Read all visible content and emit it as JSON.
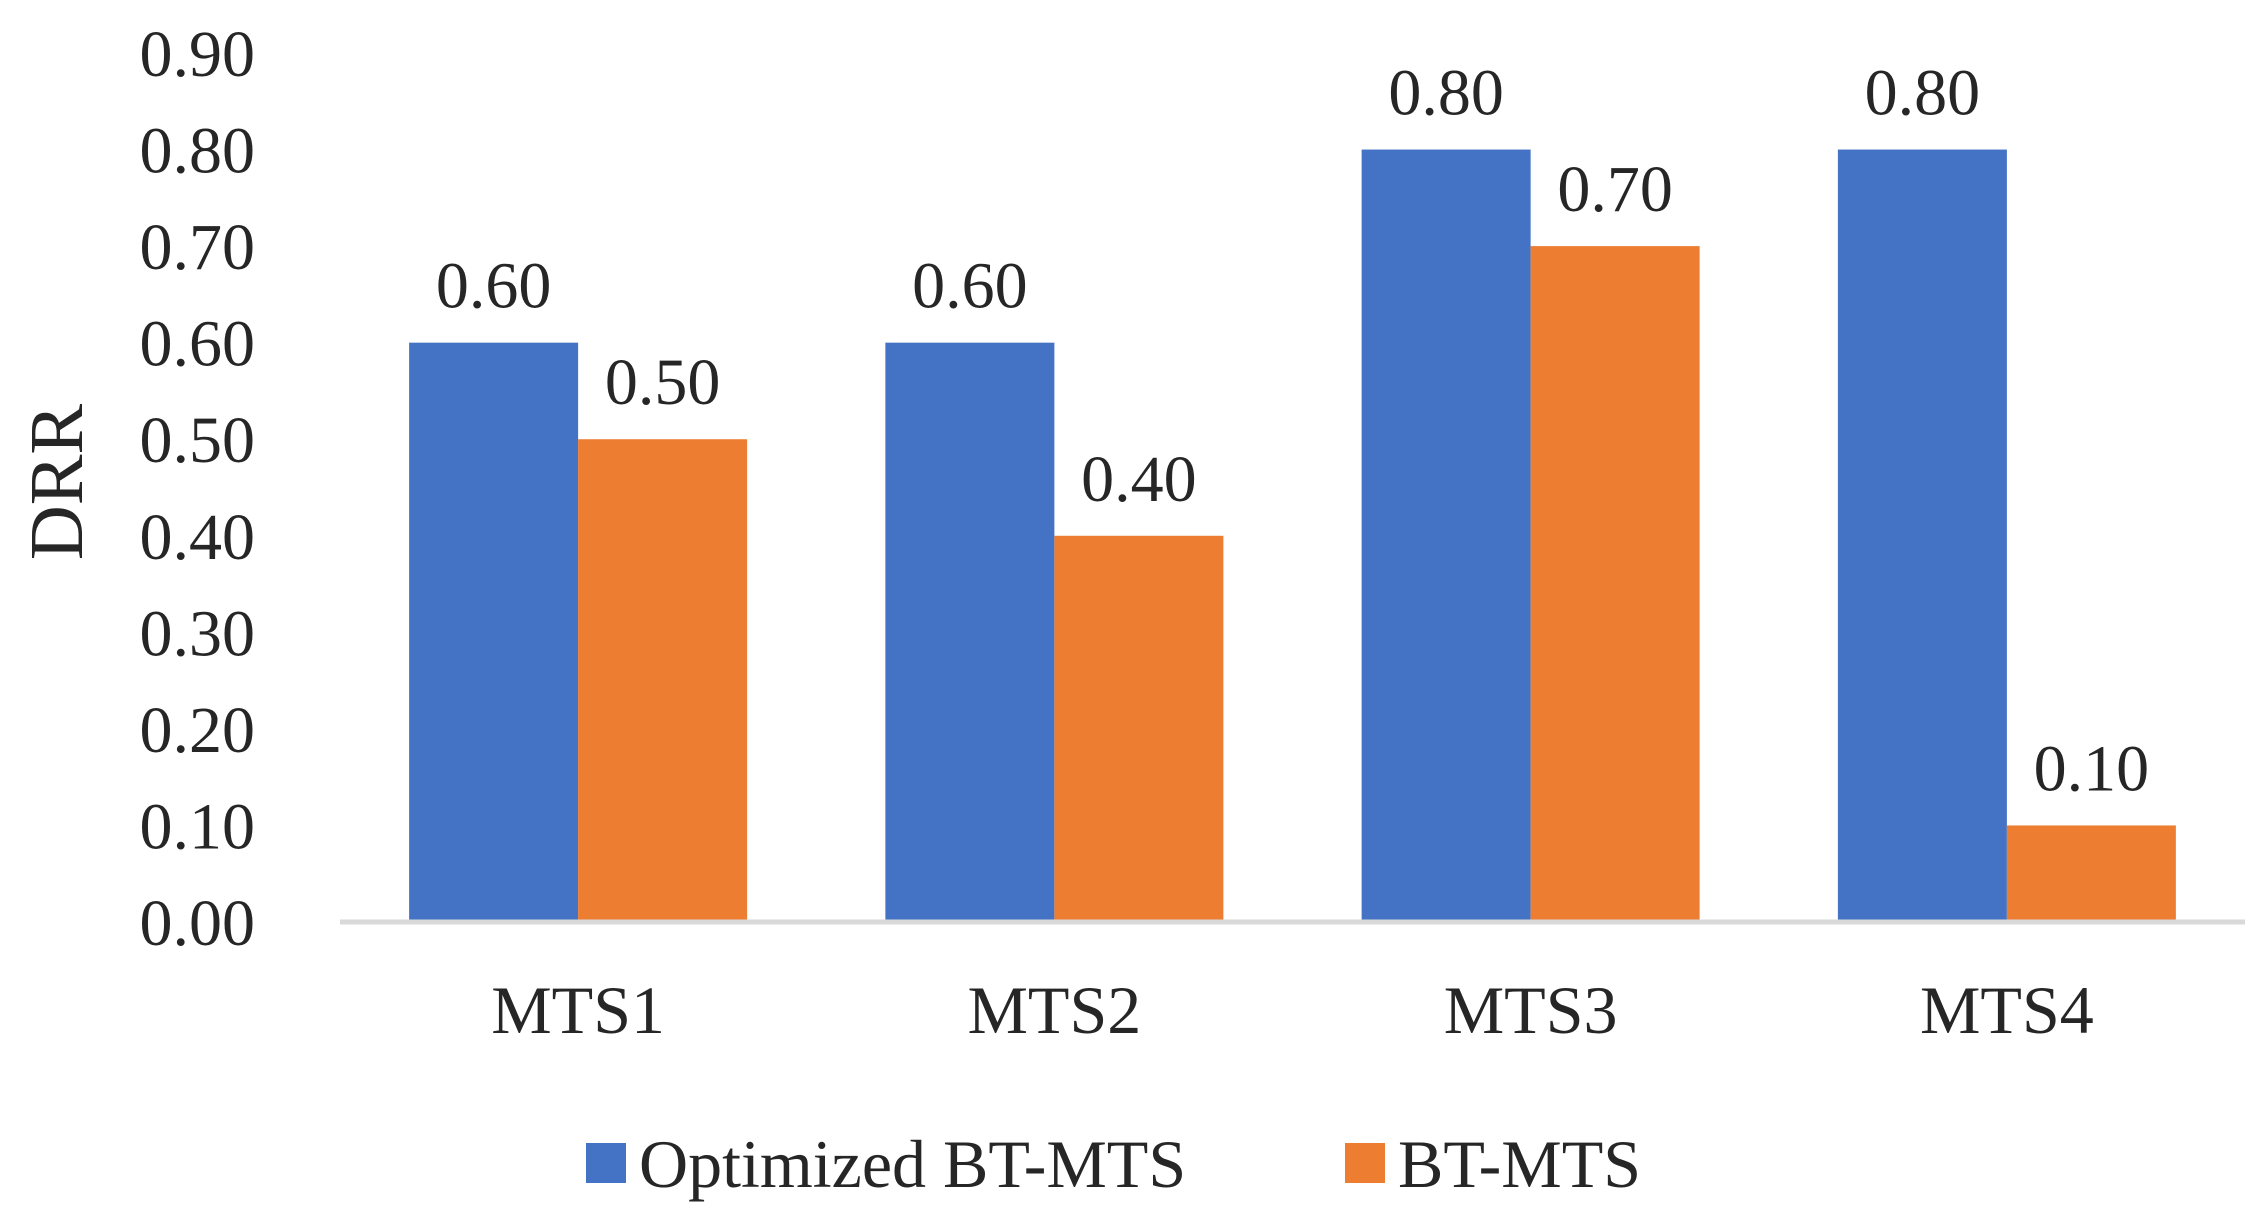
{
  "chart_data": {
    "type": "bar",
    "title": "",
    "xlabel": "",
    "ylabel": "DRR",
    "ylim": [
      0,
      0.9
    ],
    "ytick_step": 0.1,
    "grid": false,
    "legend_position": "bottom",
    "categories": [
      "MTS1",
      "MTS2",
      "MTS3",
      "MTS4"
    ],
    "series": [
      {
        "name": "Optimized BT-MTS",
        "color": "#4472C4",
        "values": [
          0.6,
          0.6,
          0.8,
          0.8
        ]
      },
      {
        "name": "BT-MTS",
        "color": "#ED7D31",
        "values": [
          0.5,
          0.4,
          0.7,
          0.1
        ]
      }
    ],
    "value_format_decimals": 2,
    "axis_color": "#D9D9D9"
  }
}
